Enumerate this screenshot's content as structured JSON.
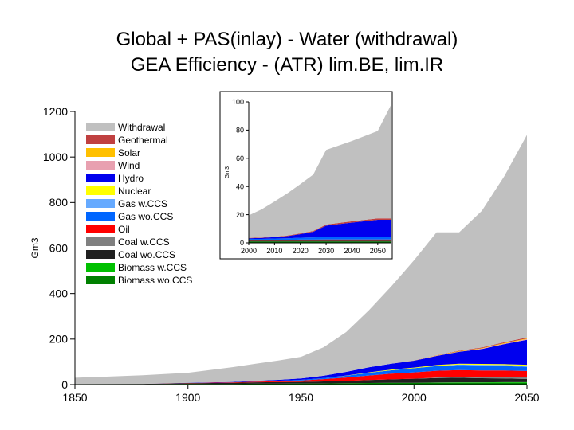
{
  "title_line1": "Global + PAS(inlay) - Water (withdrawal)",
  "title_line2": "GEA Efficiency - (ATR) lim.BE, lim.IR",
  "chart_data": [
    {
      "type": "area",
      "subtype": "stacked",
      "title": "Global + PAS(inlay) - Water (withdrawal) GEA Efficiency - (ATR) lim.BE, lim.IR",
      "xlabel": "",
      "ylabel": "Gm3",
      "xlim": [
        1850,
        2050
      ],
      "ylim": [
        0,
        1200
      ],
      "x_ticks": [
        "1850",
        "1900",
        "1950",
        "2000",
        "2050"
      ],
      "y_ticks": [
        "0",
        "200",
        "400",
        "600",
        "800",
        "1000",
        "1200"
      ],
      "x": [
        1850,
        1880,
        1900,
        1920,
        1930,
        1940,
        1950,
        1960,
        1970,
        1980,
        1990,
        2000,
        2010,
        2020,
        2030,
        2040,
        2050
      ],
      "series": [
        {
          "name": "Biomass wo.CCS",
          "color": "#008000",
          "values": [
            2,
            2,
            3,
            3,
            4,
            4,
            5,
            5,
            6,
            7,
            8,
            8,
            8,
            8,
            8,
            8,
            8
          ]
        },
        {
          "name": "Biomass w.CCS",
          "color": "#00c000",
          "values": [
            0,
            0,
            0,
            0,
            0,
            0,
            0,
            0,
            0,
            0,
            0,
            0,
            1,
            2,
            2,
            3,
            3
          ]
        },
        {
          "name": "Coal wo.CCS",
          "color": "#202020",
          "values": [
            0,
            1,
            3,
            5,
            6,
            7,
            7,
            9,
            10,
            13,
            15,
            18,
            20,
            20,
            18,
            16,
            14
          ]
        },
        {
          "name": "Coal w.CCS",
          "color": "#808080",
          "values": [
            0,
            0,
            0,
            0,
            0,
            0,
            0,
            0,
            0,
            0,
            0,
            0,
            2,
            4,
            6,
            8,
            10
          ]
        },
        {
          "name": "Oil",
          "color": "#ff0000",
          "values": [
            0,
            0,
            1,
            2,
            3,
            4,
            6,
            10,
            15,
            20,
            25,
            28,
            30,
            30,
            28,
            27,
            25
          ]
        },
        {
          "name": "Gas wo.CCS",
          "color": "#0066ff",
          "values": [
            0,
            0,
            0,
            0,
            1,
            2,
            3,
            5,
            8,
            12,
            15,
            18,
            20,
            22,
            22,
            20,
            18
          ]
        },
        {
          "name": "Gas w.CCS",
          "color": "#66aaff",
          "values": [
            0,
            0,
            0,
            0,
            0,
            0,
            0,
            0,
            0,
            0,
            0,
            0,
            1,
            2,
            3,
            4,
            5
          ]
        },
        {
          "name": "Nuclear",
          "color": "#ffff00",
          "values": [
            0,
            0,
            0,
            0,
            0,
            0,
            0,
            0,
            1,
            2,
            3,
            3,
            4,
            4,
            4,
            4,
            4
          ]
        },
        {
          "name": "Hydro",
          "color": "#0000ee",
          "values": [
            0,
            0,
            1,
            2,
            3,
            4,
            6,
            10,
            16,
            22,
            26,
            30,
            40,
            52,
            65,
            88,
            110
          ]
        },
        {
          "name": "Wind",
          "color": "#e8a0b0",
          "values": [
            0,
            0,
            0,
            0,
            0,
            0,
            0,
            0,
            0,
            0,
            0,
            0,
            1,
            1,
            2,
            2,
            3
          ]
        },
        {
          "name": "Solar",
          "color": "#ffc000",
          "values": [
            0,
            0,
            0,
            0,
            0,
            0,
            0,
            0,
            0,
            0,
            0,
            0,
            1,
            2,
            2,
            3,
            3
          ]
        },
        {
          "name": "Geothermal",
          "color": "#c04040",
          "values": [
            0,
            0,
            0,
            0,
            0,
            0,
            0,
            0,
            0,
            0,
            0,
            1,
            1,
            2,
            3,
            3,
            4
          ]
        },
        {
          "name": "Withdrawal",
          "color": "#c0c0c0",
          "values": [
            28,
            38,
            44,
            65,
            75,
            85,
            95,
            125,
            175,
            250,
            340,
            440,
            540,
            520,
            600,
            730,
            890
          ]
        }
      ]
    },
    {
      "type": "area",
      "subtype": "stacked",
      "title": "PAS (inlay)",
      "ylabel": "Gm3",
      "xlim": [
        2000,
        2055
      ],
      "ylim": [
        0,
        100
      ],
      "x_ticks": [
        "2000",
        "2010",
        "2020",
        "2030",
        "2040",
        "2050"
      ],
      "y_ticks": [
        "0",
        "20",
        "40",
        "60",
        "80",
        "100"
      ],
      "x": [
        2000,
        2005,
        2010,
        2015,
        2020,
        2025,
        2030,
        2040,
        2050,
        2055
      ],
      "series": [
        {
          "name": "Biomass wo.CCS",
          "color": "#008000",
          "values": [
            1,
            1,
            1,
            1,
            1,
            1,
            1,
            1,
            1,
            1
          ]
        },
        {
          "name": "Coal wo.CCS",
          "color": "#202020",
          "values": [
            0.5,
            0.5,
            0.5,
            0.5,
            0.6,
            0.6,
            0.6,
            0.6,
            0.6,
            0.6
          ]
        },
        {
          "name": "Oil",
          "color": "#ff0000",
          "values": [
            0.5,
            0.5,
            0.6,
            0.6,
            0.7,
            0.7,
            0.8,
            0.8,
            0.8,
            0.8
          ]
        },
        {
          "name": "Gas wo.CCS",
          "color": "#0066ff",
          "values": [
            0.8,
            0.8,
            1,
            1.2,
            1.4,
            1.6,
            1.8,
            2,
            2,
            2
          ]
        },
        {
          "name": "Hydro",
          "color": "#0000ee",
          "values": [
            0.5,
            0.7,
            1,
            1.5,
            2.5,
            4,
            8,
            10,
            12,
            12
          ]
        },
        {
          "name": "Geothermal",
          "color": "#c04040",
          "values": [
            0.2,
            0.3,
            0.3,
            0.4,
            0.5,
            0.6,
            0.8,
            0.9,
            1,
            1
          ]
        },
        {
          "name": "Withdrawal",
          "color": "#c0c0c0",
          "values": [
            16,
            20,
            25,
            30,
            35,
            40,
            53,
            57,
            62,
            80
          ]
        }
      ]
    }
  ]
}
